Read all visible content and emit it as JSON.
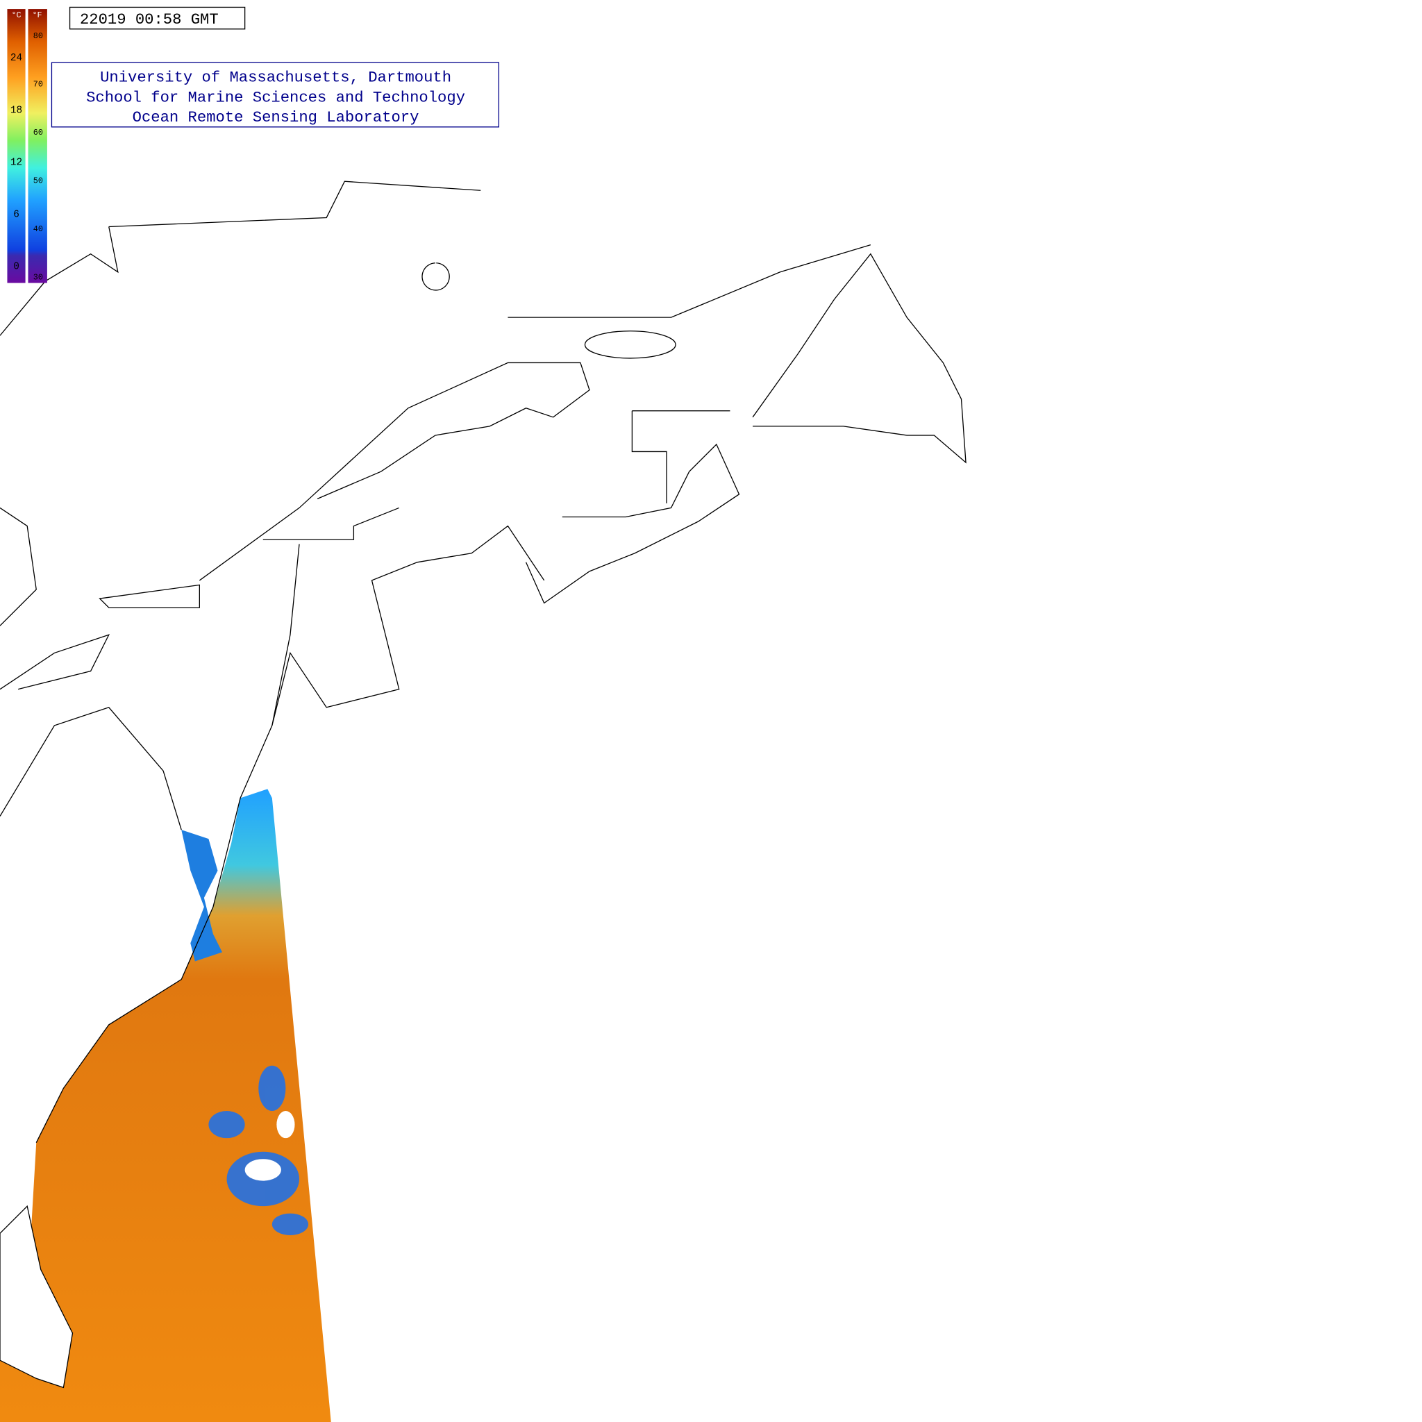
{
  "timestamp": "22019 00:58 GMT",
  "credits": [
    "University of Massachusetts, Dartmouth",
    "School for Marine Sciences and Technology",
    "Ocean Remote Sensing Laboratory"
  ],
  "colorbar": {
    "celsius": {
      "unit": "°C",
      "range": [
        -2,
        29.5
      ],
      "ticks": [
        24,
        18,
        12,
        6,
        0
      ]
    },
    "fahrenheit": {
      "unit": "°F",
      "range": [
        28.5,
        85.3
      ],
      "ticks": [
        80,
        70,
        60,
        50,
        40,
        30
      ]
    }
  }
}
